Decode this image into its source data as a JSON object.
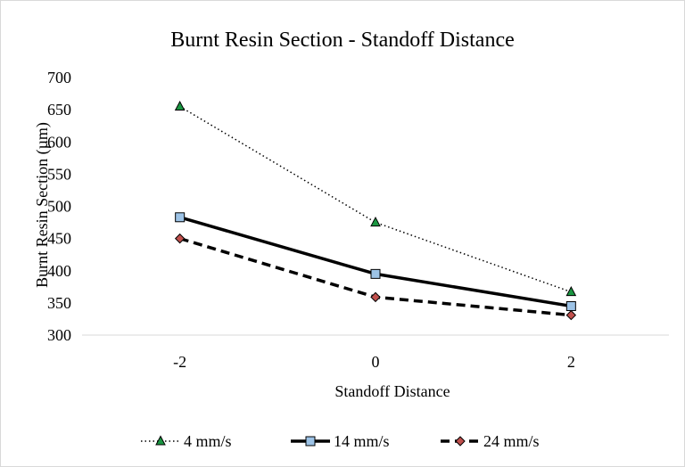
{
  "chart_data": {
    "type": "line",
    "title": "Burnt Resin Section - Standoff Distance",
    "xlabel": "Standoff Distance",
    "ylabel": "Burnt Resin Section  (µm)",
    "categories": [
      "-2",
      "0",
      "2"
    ],
    "ylim": [
      300,
      700
    ],
    "yticks": [
      "300",
      "350",
      "400",
      "450",
      "500",
      "550",
      "600",
      "650",
      "700"
    ],
    "grid": false,
    "legend_position": "bottom",
    "series": [
      {
        "name": "4 mm/s",
        "values": [
          655,
          475,
          367
        ],
        "line_style": "dotted",
        "marker": "triangle",
        "marker_color": "#1a9641"
      },
      {
        "name": "14 mm/s",
        "values": [
          483,
          395,
          345
        ],
        "line_style": "solid",
        "marker": "square",
        "marker_color": "#9dc3e6"
      },
      {
        "name": "24 mm/s",
        "values": [
          450,
          359,
          331
        ],
        "line_style": "dashed",
        "marker": "diamond",
        "marker_color": "#c0504d"
      }
    ]
  }
}
